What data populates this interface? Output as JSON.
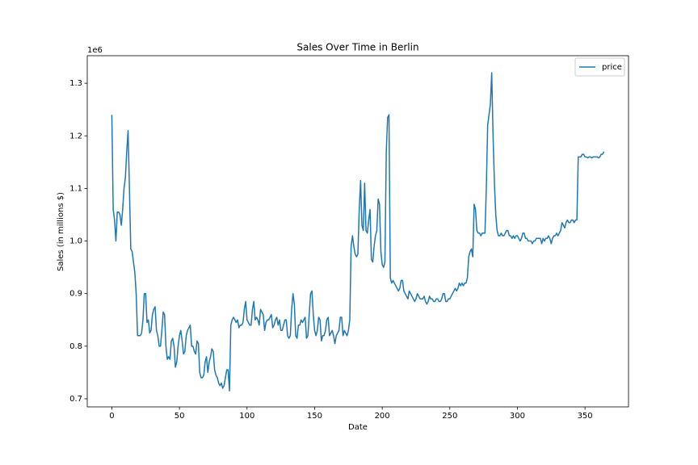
{
  "chart_data": {
    "type": "line",
    "title": "Sales Over Time in Berlin",
    "x_label": "Date",
    "y_label": "Sales (in millions $)",
    "y_offset_text": "1e6",
    "legend": "upper right",
    "grid": false,
    "xlim": [
      -18.2,
      382.2
    ],
    "xticks": [
      0,
      50,
      100,
      150,
      200,
      250,
      300,
      350
    ],
    "ylim": [
      0.6846,
      1.3524
    ],
    "yticks": [
      0.7,
      0.8,
      0.9,
      {
        "value": 1.0,
        "label": "1.0"
      },
      1.1,
      1.2,
      1.3
    ],
    "x": [
      0,
      1,
      2,
      3,
      4,
      5,
      6,
      7,
      8,
      9,
      10,
      11,
      12,
      13,
      14,
      15,
      16,
      17,
      18,
      19,
      20,
      21,
      22,
      23,
      24,
      25,
      26,
      27,
      28,
      29,
      30,
      31,
      32,
      33,
      34,
      35,
      36,
      37,
      38,
      39,
      40,
      41,
      42,
      43,
      44,
      45,
      46,
      47,
      48,
      49,
      50,
      51,
      52,
      53,
      54,
      55,
      56,
      57,
      58,
      59,
      60,
      61,
      62,
      63,
      64,
      65,
      66,
      67,
      68,
      69,
      70,
      71,
      72,
      73,
      74,
      75,
      76,
      77,
      78,
      79,
      80,
      81,
      82,
      83,
      84,
      85,
      86,
      87,
      88,
      89,
      90,
      91,
      92,
      93,
      94,
      95,
      96,
      97,
      98,
      99,
      100,
      101,
      102,
      103,
      104,
      105,
      106,
      107,
      108,
      109,
      110,
      111,
      112,
      113,
      114,
      115,
      116,
      117,
      118,
      119,
      120,
      121,
      122,
      123,
      124,
      125,
      126,
      127,
      128,
      129,
      130,
      131,
      132,
      133,
      134,
      135,
      136,
      137,
      138,
      139,
      140,
      141,
      142,
      143,
      144,
      145,
      146,
      147,
      148,
      149,
      150,
      151,
      152,
      153,
      154,
      155,
      156,
      157,
      158,
      159,
      160,
      161,
      162,
      163,
      164,
      165,
      166,
      167,
      168,
      169,
      170,
      171,
      172,
      173,
      174,
      175,
      176,
      177,
      178,
      179,
      180,
      181,
      182,
      183,
      184,
      185,
      186,
      187,
      188,
      189,
      190,
      191,
      192,
      193,
      194,
      195,
      196,
      197,
      198,
      199,
      200,
      201,
      202,
      203,
      204,
      205,
      206,
      207,
      208,
      209,
      210,
      211,
      212,
      213,
      214,
      215,
      216,
      217,
      218,
      219,
      220,
      221,
      222,
      223,
      224,
      225,
      226,
      227,
      228,
      229,
      230,
      231,
      232,
      233,
      234,
      235,
      236,
      237,
      238,
      239,
      240,
      241,
      242,
      243,
      244,
      245,
      246,
      247,
      248,
      249,
      250,
      251,
      252,
      253,
      254,
      255,
      256,
      257,
      258,
      259,
      260,
      261,
      262,
      263,
      264,
      265,
      266,
      267,
      268,
      269,
      270,
      271,
      272,
      273,
      274,
      275,
      276,
      277,
      278,
      279,
      280,
      281,
      282,
      283,
      284,
      285,
      286,
      287,
      288,
      289,
      290,
      291,
      292,
      293,
      294,
      295,
      296,
      297,
      298,
      299,
      300,
      301,
      302,
      303,
      304,
      305,
      306,
      307,
      308,
      309,
      310,
      311,
      312,
      313,
      314,
      315,
      316,
      317,
      318,
      319,
      320,
      321,
      322,
      323,
      324,
      325,
      326,
      327,
      328,
      329,
      330,
      331,
      332,
      333,
      334,
      335,
      336,
      337,
      338,
      339,
      340,
      341,
      342,
      343,
      344,
      345,
      346,
      347,
      348,
      349,
      350,
      351,
      352,
      353,
      354,
      355,
      356,
      357,
      358,
      359,
      360,
      361,
      362,
      363,
      364
    ],
    "series": [
      {
        "name": "price",
        "color": "#1f77b4",
        "values": [
          1.24,
          1.06,
          1.04,
          1.0,
          1.055,
          1.055,
          1.05,
          1.03,
          1.06,
          1.1,
          1.12,
          1.17,
          1.21,
          1.1,
          0.985,
          0.98,
          0.96,
          0.94,
          0.9,
          0.82,
          0.82,
          0.82,
          0.825,
          0.85,
          0.9,
          0.9,
          0.845,
          0.85,
          0.825,
          0.83,
          0.86,
          0.87,
          0.875,
          0.83,
          0.82,
          0.8,
          0.8,
          0.83,
          0.865,
          0.86,
          0.8,
          0.775,
          0.78,
          0.775,
          0.81,
          0.815,
          0.8,
          0.76,
          0.77,
          0.8,
          0.82,
          0.83,
          0.81,
          0.785,
          0.79,
          0.82,
          0.83,
          0.835,
          0.84,
          0.8,
          0.8,
          0.79,
          0.785,
          0.81,
          0.805,
          0.75,
          0.74,
          0.74,
          0.745,
          0.77,
          0.78,
          0.75,
          0.77,
          0.78,
          0.795,
          0.79,
          0.755,
          0.745,
          0.74,
          0.73,
          0.725,
          0.73,
          0.72,
          0.725,
          0.74,
          0.755,
          0.755,
          0.715,
          0.84,
          0.85,
          0.855,
          0.85,
          0.845,
          0.85,
          0.835,
          0.84,
          0.84,
          0.845,
          0.87,
          0.885,
          0.85,
          0.845,
          0.84,
          0.84,
          0.87,
          0.885,
          0.85,
          0.855,
          0.85,
          0.84,
          0.87,
          0.865,
          0.86,
          0.83,
          0.845,
          0.85,
          0.85,
          0.855,
          0.86,
          0.835,
          0.84,
          0.85,
          0.855,
          0.84,
          0.85,
          0.83,
          0.83,
          0.84,
          0.85,
          0.85,
          0.82,
          0.815,
          0.82,
          0.87,
          0.9,
          0.88,
          0.82,
          0.815,
          0.84,
          0.84,
          0.85,
          0.845,
          0.85,
          0.855,
          0.815,
          0.82,
          0.86,
          0.9,
          0.905,
          0.86,
          0.83,
          0.82,
          0.83,
          0.855,
          0.85,
          0.81,
          0.82,
          0.82,
          0.83,
          0.85,
          0.855,
          0.82,
          0.825,
          0.83,
          0.82,
          0.805,
          0.82,
          0.825,
          0.83,
          0.855,
          0.855,
          0.82,
          0.83,
          0.825,
          0.82,
          0.83,
          0.85,
          0.99,
          1.01,
          0.99,
          0.975,
          0.97,
          0.975,
          1.06,
          1.115,
          1.03,
          1.02,
          1.11,
          1.02,
          1.015,
          1.04,
          1.06,
          0.965,
          0.96,
          0.99,
          1.01,
          1.02,
          1.08,
          1.07,
          0.98,
          0.955,
          0.95,
          0.96,
          1.17,
          1.235,
          1.24,
          0.93,
          0.92,
          0.925,
          0.92,
          0.915,
          0.91,
          0.905,
          0.91,
          0.925,
          0.925,
          0.905,
          0.9,
          0.895,
          0.89,
          0.905,
          0.9,
          0.895,
          0.89,
          0.885,
          0.89,
          0.9,
          0.895,
          0.89,
          0.89,
          0.89,
          0.895,
          0.885,
          0.88,
          0.885,
          0.895,
          0.89,
          0.89,
          0.885,
          0.885,
          0.89,
          0.89,
          0.885,
          0.885,
          0.89,
          0.9,
          0.9,
          0.885,
          0.885,
          0.89,
          0.89,
          0.895,
          0.9,
          0.905,
          0.91,
          0.905,
          0.91,
          0.92,
          0.915,
          0.92,
          0.915,
          0.92,
          0.92,
          0.93,
          0.97,
          0.98,
          0.985,
          0.97,
          1.07,
          1.06,
          1.02,
          1.015,
          1.015,
          1.01,
          1.015,
          1.015,
          1.015,
          1.1,
          1.22,
          1.24,
          1.26,
          1.32,
          1.2,
          1.11,
          1.05,
          1.02,
          1.01,
          1.01,
          1.015,
          1.01,
          1.01,
          1.015,
          1.02,
          1.02,
          1.01,
          1.01,
          1.005,
          1.01,
          1.005,
          1.01,
          1.01,
          1.005,
          1.0,
          1.005,
          1.015,
          1.015,
          1.005,
          1.005,
          1.0,
          1.0,
          1.0,
          0.995,
          1.0,
          1.0,
          1.005,
          1.005,
          1.005,
          1.005,
          0.995,
          1.005,
          1.0,
          1.005,
          1.005,
          1.01,
          1.005,
          0.995,
          1.005,
          1.01,
          1.01,
          1.015,
          1.01,
          1.015,
          1.02,
          1.035,
          1.03,
          1.025,
          1.035,
          1.04,
          1.035,
          1.035,
          1.04,
          1.04,
          1.035,
          1.04,
          1.04,
          1.16,
          1.16,
          1.16,
          1.165,
          1.165,
          1.16,
          1.16,
          1.158,
          1.16,
          1.16,
          1.158,
          1.16,
          1.16,
          1.16,
          1.16,
          1.158,
          1.16,
          1.165,
          1.165,
          1.17
        ]
      }
    ]
  }
}
